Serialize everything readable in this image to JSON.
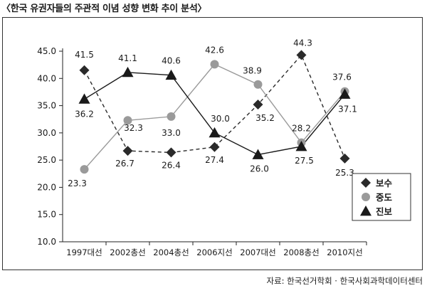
{
  "title": "〈한국 유권자들의 주관적 이념 성향 변화 추이 분석〉",
  "source": "자료: 한국선거학회 · 한국사회과학데이터센터",
  "chart_data": {
    "type": "line",
    "categories": [
      "1997대선",
      "2002총선",
      "2004총선",
      "2006지선",
      "2007대선",
      "2008총선",
      "2010지선"
    ],
    "ylim": [
      10,
      45
    ],
    "yticks": [
      "10.0",
      "15.0",
      "20.0",
      "25.0",
      "30.0",
      "35.0",
      "40.0",
      "45.0"
    ],
    "grid": false,
    "legend_position": "right",
    "series": [
      {
        "name": "보수",
        "marker": "diamond",
        "line": "dashed",
        "color": "#2a2a2a",
        "values": [
          41.5,
          26.7,
          26.4,
          27.4,
          35.2,
          44.3,
          25.3
        ],
        "labels": [
          "41.5",
          "26.7",
          "26.4",
          "27.4",
          "35.2",
          "44.3",
          "25.3"
        ]
      },
      {
        "name": "중도",
        "marker": "circle",
        "line": "solid",
        "color": "#9a9a9a",
        "values": [
          23.3,
          32.3,
          33.0,
          42.6,
          38.9,
          28.2,
          37.6
        ],
        "labels": [
          "23.3",
          "32.3",
          "33.0",
          "42.6",
          "38.9",
          "28.2",
          "37.6"
        ]
      },
      {
        "name": "진보",
        "marker": "triangle",
        "line": "solid",
        "color": "#1a1a1a",
        "values": [
          36.2,
          41.1,
          40.6,
          30.0,
          26.0,
          27.5,
          37.1
        ],
        "labels": [
          "36.2",
          "41.1",
          "40.6",
          "30.0",
          "26.0",
          "27.5",
          "37.1"
        ]
      }
    ]
  }
}
